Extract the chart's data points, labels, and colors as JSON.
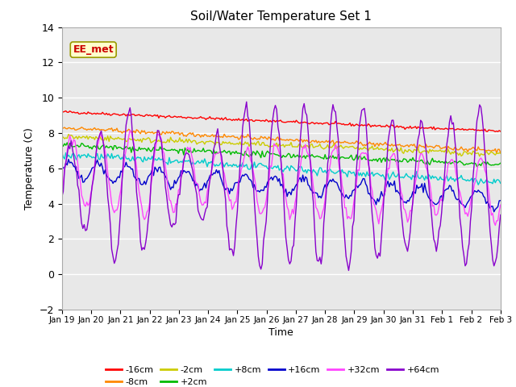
{
  "title": "Soil/Water Temperature Set 1",
  "xlabel": "Time",
  "ylabel": "Temperature (C)",
  "ylim": [
    -2,
    14
  ],
  "yticks": [
    -2,
    0,
    2,
    4,
    6,
    8,
    10,
    12,
    14
  ],
  "annotation_text": "EE_met",
  "annotation_color": "#cc0000",
  "annotation_bg": "#ffffcc",
  "annotation_border": "#999900",
  "fig_bg": "#ffffff",
  "plot_bg": "#e8e8e8",
  "series": [
    {
      "label": "-16cm",
      "color": "#ff0000"
    },
    {
      "label": "-8cm",
      "color": "#ff8800"
    },
    {
      "label": "-2cm",
      "color": "#cccc00"
    },
    {
      "label": "+2cm",
      "color": "#00bb00"
    },
    {
      "label": "+8cm",
      "color": "#00cccc"
    },
    {
      "label": "+16cm",
      "color": "#0000cc"
    },
    {
      "label": "+32cm",
      "color": "#ff44ff"
    },
    {
      "label": "+64cm",
      "color": "#8800cc"
    }
  ],
  "xtick_labels": [
    "Jan 19",
    "Jan 20",
    "Jan 21",
    "Jan 22",
    "Jan 23",
    "Jan 24",
    "Jan 25",
    "Jan 26",
    "Jan 27",
    "Jan 28",
    "Jan 29",
    "Jan 30",
    "Jan 31",
    "Feb 1",
    "Feb 2",
    "Feb 3"
  ],
  "n_points": 336,
  "grid_color": "#ffffff"
}
